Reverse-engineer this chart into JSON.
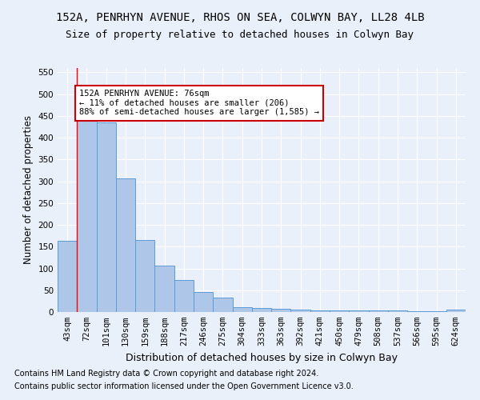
{
  "title": "152A, PENRHYN AVENUE, RHOS ON SEA, COLWYN BAY, LL28 4LB",
  "subtitle": "Size of property relative to detached houses in Colwyn Bay",
  "xlabel": "Distribution of detached houses by size in Colwyn Bay",
  "ylabel": "Number of detached properties",
  "categories": [
    "43sqm",
    "72sqm",
    "101sqm",
    "130sqm",
    "159sqm",
    "188sqm",
    "217sqm",
    "246sqm",
    "275sqm",
    "304sqm",
    "333sqm",
    "363sqm",
    "392sqm",
    "421sqm",
    "450sqm",
    "479sqm",
    "508sqm",
    "537sqm",
    "566sqm",
    "595sqm",
    "624sqm"
  ],
  "values": [
    163,
    450,
    435,
    307,
    166,
    106,
    74,
    45,
    33,
    11,
    10,
    8,
    6,
    4,
    4,
    3,
    3,
    3,
    2,
    1,
    5
  ],
  "bar_color": "#aec6e8",
  "bar_edge_color": "#5b9bd5",
  "red_line_x": 1.5,
  "annotation_text": "152A PENRHYN AVENUE: 76sqm\n← 11% of detached houses are smaller (206)\n88% of semi-detached houses are larger (1,585) →",
  "annotation_box_color": "#ffffff",
  "annotation_box_edge": "#cc0000",
  "ylim": [
    0,
    560
  ],
  "yticks": [
    0,
    50,
    100,
    150,
    200,
    250,
    300,
    350,
    400,
    450,
    500,
    550
  ],
  "footnote1": "Contains HM Land Registry data © Crown copyright and database right 2024.",
  "footnote2": "Contains public sector information licensed under the Open Government Licence v3.0.",
  "background_color": "#eaf0fa",
  "plot_bg_color": "#eaf0fa",
  "grid_color": "#ffffff",
  "title_fontsize": 10,
  "subtitle_fontsize": 9,
  "xlabel_fontsize": 9,
  "ylabel_fontsize": 8.5,
  "tick_fontsize": 7.5,
  "footnote_fontsize": 7
}
